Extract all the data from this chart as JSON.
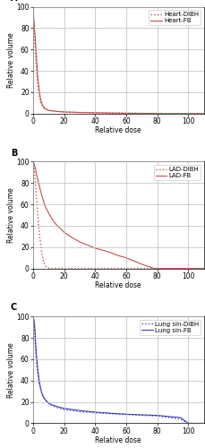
{
  "panels": [
    {
      "label": "A",
      "legend": [
        "Heart-DIBH",
        "Heart-FB"
      ],
      "line_color": "#c0504d",
      "dibh": {
        "x": [
          0,
          0.3,
          0.6,
          1,
          1.5,
          2,
          2.5,
          3,
          4,
          5,
          6,
          7,
          8,
          10,
          15,
          20,
          30,
          40,
          50,
          60,
          70,
          80,
          85,
          100,
          110
        ],
        "y": [
          100,
          90,
          80,
          70,
          60,
          47,
          37,
          28,
          17,
          10,
          7,
          5,
          4,
          3,
          2,
          1.5,
          1,
          0.8,
          0.5,
          0.3,
          0.2,
          0.1,
          0,
          0,
          0
        ]
      },
      "fb": {
        "x": [
          0,
          0.3,
          0.6,
          1,
          1.5,
          2,
          2.5,
          3,
          4,
          5,
          6,
          7,
          8,
          10,
          15,
          20,
          30,
          40,
          50,
          60,
          70,
          80,
          85,
          100,
          110
        ],
        "y": [
          100,
          95,
          88,
          80,
          70,
          58,
          47,
          36,
          22,
          13,
          8.5,
          6,
          4.5,
          3,
          2,
          1.5,
          1,
          0.8,
          0.5,
          0.3,
          0.2,
          0.1,
          0,
          0,
          0
        ]
      }
    },
    {
      "label": "B",
      "legend": [
        "LAD-DIBH",
        "LAD-FB"
      ],
      "line_color": "#c0504d",
      "dibh": {
        "x": [
          0,
          0.5,
          1,
          1.5,
          2,
          2.5,
          3,
          3.5,
          4,
          4.5,
          5,
          5.5,
          6,
          6.5,
          7,
          7.5,
          8,
          9,
          10,
          11,
          12,
          100,
          110
        ],
        "y": [
          100,
          96,
          90,
          82,
          72,
          62,
          52,
          43,
          35,
          28,
          22,
          17,
          12,
          9,
          6,
          4,
          2.5,
          1,
          0.3,
          0.1,
          0,
          0,
          0
        ]
      },
      "fb": {
        "x": [
          0,
          0.5,
          1,
          1.5,
          2,
          3,
          4,
          5,
          6,
          7,
          8,
          10,
          12,
          15,
          20,
          25,
          30,
          35,
          40,
          45,
          50,
          55,
          60,
          65,
          70,
          75,
          78,
          100,
          110
        ],
        "y": [
          100,
          99,
          97,
          94,
          90,
          84,
          78,
          72,
          67,
          62,
          58,
          52,
          47,
          41,
          34,
          29,
          25,
          22,
          19,
          17,
          15,
          12,
          10,
          7,
          4,
          1.5,
          0,
          0,
          0
        ]
      }
    },
    {
      "label": "C",
      "legend": [
        "Lung sin-DIBH",
        "Lung sin-FB"
      ],
      "line_color": "#4040aa",
      "dibh": {
        "x": [
          0,
          0.5,
          1,
          1.5,
          2,
          3,
          4,
          5,
          6,
          7,
          8,
          10,
          12,
          15,
          20,
          25,
          30,
          40,
          50,
          60,
          70,
          80,
          90,
          95,
          100,
          110
        ],
        "y": [
          100,
          97,
          88,
          75,
          62,
          48,
          38,
          32,
          27,
          24,
          22,
          19,
          17,
          15,
          13,
          12,
          11,
          10,
          9,
          8.5,
          7.5,
          7,
          5,
          4,
          0,
          0
        ]
      },
      "fb": {
        "x": [
          0,
          0.5,
          1,
          1.5,
          2,
          3,
          4,
          5,
          6,
          7,
          8,
          10,
          12,
          15,
          20,
          25,
          30,
          40,
          50,
          60,
          70,
          80,
          90,
          95,
          100,
          110
        ],
        "y": [
          100,
          98,
          93,
          82,
          68,
          52,
          40,
          32,
          27,
          24,
          22,
          19,
          17.5,
          16,
          14,
          13,
          12,
          10.5,
          9.5,
          8.5,
          8,
          7.5,
          6,
          5.5,
          0,
          0
        ]
      }
    }
  ],
  "xlim": [
    0,
    110
  ],
  "ylim": [
    0,
    100
  ],
  "xticks": [
    0,
    20,
    40,
    60,
    80,
    100
  ],
  "yticks": [
    0,
    20,
    40,
    60,
    80,
    100
  ],
  "xlabel": "Relative dose",
  "ylabel": "Relative volume",
  "grid_color": "#bbbbbb",
  "grid_linewidth": 0.5,
  "axis_fontsize": 5.5,
  "label_fontsize": 5.5,
  "legend_fontsize": 5.0,
  "line_width": 0.8
}
